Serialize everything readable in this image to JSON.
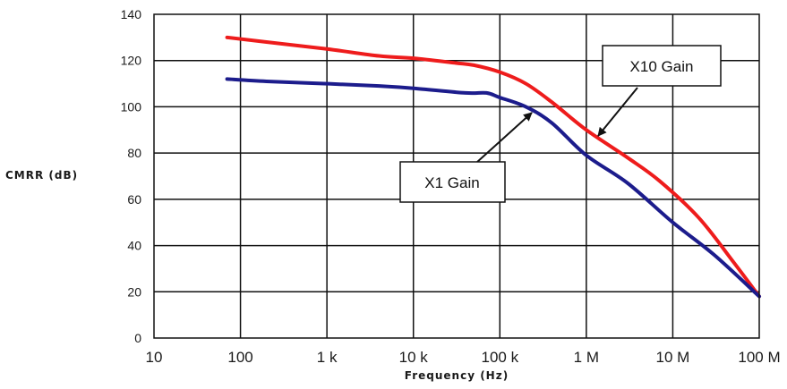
{
  "chart_data": {
    "type": "line",
    "title": "",
    "xlabel": "Frequency (Hz)",
    "ylabel": "CMRR (dB)",
    "x_scale": "log",
    "xlim": [
      10,
      100000000
    ],
    "ylim": [
      0,
      140
    ],
    "grid": true,
    "x_ticks": [
      {
        "value": 10,
        "label": "10"
      },
      {
        "value": 100,
        "label": "100"
      },
      {
        "value": 1000,
        "label": "1 k"
      },
      {
        "value": 10000,
        "label": "10 k"
      },
      {
        "value": 100000,
        "label": "100 k"
      },
      {
        "value": 1000000,
        "label": "1 M"
      },
      {
        "value": 10000000,
        "label": "10 M"
      },
      {
        "value": 100000000,
        "label": "100 M"
      }
    ],
    "y_ticks": [
      {
        "value": 0,
        "label": "0"
      },
      {
        "value": 20,
        "label": "20"
      },
      {
        "value": 40,
        "label": "40"
      },
      {
        "value": 60,
        "label": "60"
      },
      {
        "value": 80,
        "label": "80"
      },
      {
        "value": 100,
        "label": "100"
      },
      {
        "value": 120,
        "label": "120"
      },
      {
        "value": 140,
        "label": "140"
      }
    ],
    "series": [
      {
        "name": "X10 Gain",
        "color": "#ee1c1c",
        "x": [
          70,
          200,
          1000,
          4000,
          10000,
          30000,
          50000,
          100000,
          200000,
          400000,
          1000000,
          3000000,
          7000000,
          20000000,
          50000000,
          100000000
        ],
        "y": [
          130,
          128,
          125,
          122,
          121,
          119,
          118,
          115,
          110,
          102,
          90,
          78,
          68,
          52,
          33,
          18
        ]
      },
      {
        "name": "X1 Gain",
        "color": "#1c1c8c",
        "x": [
          70,
          200,
          1000,
          4000,
          10000,
          40000,
          70000,
          100000,
          200000,
          400000,
          1000000,
          3000000,
          10000000,
          30000000,
          100000000
        ],
        "y": [
          112,
          111,
          110,
          109,
          108,
          106,
          106,
          104,
          100,
          93,
          79,
          67,
          50,
          36,
          18
        ]
      }
    ],
    "annotations": [
      {
        "text": "X10 Gain",
        "target_series": "X10 Gain"
      },
      {
        "text": "X1 Gain",
        "target_series": "X1 Gain"
      }
    ]
  }
}
